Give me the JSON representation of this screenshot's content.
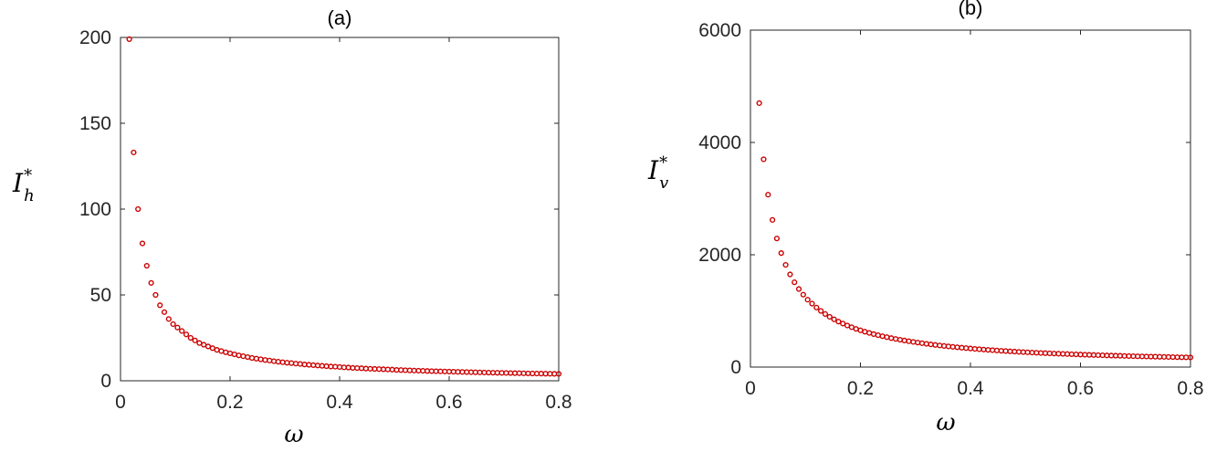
{
  "chart_data": [
    {
      "type": "scatter",
      "title": "(a)",
      "xlabel": "ω",
      "ylabel": {
        "base": "I",
        "sub": "h",
        "sup": "*"
      },
      "xlim": [
        0,
        0.8
      ],
      "ylim": [
        0,
        200
      ],
      "xticks": [
        0,
        0.2,
        0.4,
        0.6,
        0.8
      ],
      "yticks": [
        0,
        50,
        100,
        150,
        200
      ],
      "xtick_labels": [
        "0",
        "0.2",
        "0.4",
        "0.6",
        "0.8"
      ],
      "ytick_labels": [
        "0",
        "50",
        "100",
        "150",
        "200"
      ],
      "marker_color": "#cc0000",
      "grid": false,
      "series": [
        {
          "x": [
            0.016,
            0.024,
            0.032,
            0.04,
            0.048,
            0.056,
            0.064,
            0.072,
            0.08,
            0.088,
            0.096,
            0.104,
            0.112,
            0.12,
            0.128,
            0.136,
            0.144,
            0.152,
            0.16,
            0.168,
            0.176,
            0.184,
            0.192,
            0.2,
            0.208,
            0.216,
            0.224,
            0.232,
            0.24,
            0.248,
            0.256,
            0.264,
            0.272,
            0.28,
            0.288,
            0.296,
            0.304,
            0.312,
            0.32,
            0.328,
            0.336,
            0.344,
            0.352,
            0.36,
            0.368,
            0.376,
            0.384,
            0.392,
            0.4,
            0.408,
            0.416,
            0.424,
            0.432,
            0.44,
            0.448,
            0.456,
            0.464,
            0.472,
            0.48,
            0.488,
            0.496,
            0.504,
            0.512,
            0.52,
            0.528,
            0.536,
            0.544,
            0.552,
            0.56,
            0.568,
            0.576,
            0.584,
            0.592,
            0.6,
            0.608,
            0.616,
            0.624,
            0.632,
            0.64,
            0.648,
            0.656,
            0.664,
            0.672,
            0.68,
            0.688,
            0.696,
            0.704,
            0.712,
            0.72,
            0.728,
            0.736,
            0.744,
            0.752,
            0.76,
            0.768,
            0.776,
            0.784,
            0.792,
            0.8
          ],
          "y": [
            199,
            133,
            100,
            80,
            67,
            57,
            50,
            44,
            40,
            36,
            33,
            31,
            29,
            27,
            25,
            23.5,
            22,
            21,
            20,
            19,
            18,
            17.3,
            16.6,
            16,
            15.4,
            14.8,
            14.3,
            13.8,
            13.3,
            12.9,
            12.5,
            12.1,
            11.8,
            11.4,
            11.1,
            10.8,
            10.5,
            10.3,
            10,
            9.8,
            9.5,
            9.3,
            9.1,
            8.9,
            8.7,
            8.5,
            8.3,
            8.2,
            8,
            7.8,
            7.7,
            7.5,
            7.4,
            7.3,
            7.1,
            7,
            6.9,
            6.8,
            6.7,
            6.6,
            6.5,
            6.3,
            6.25,
            6.15,
            6.05,
            5.95,
            5.88,
            5.8,
            5.7,
            5.63,
            5.55,
            5.48,
            5.4,
            5.33,
            5.26,
            5.19,
            5.13,
            5.06,
            5,
            4.94,
            4.88,
            4.82,
            4.76,
            4.7,
            4.65,
            4.6,
            4.55,
            4.49,
            4.44,
            4.4,
            4.35,
            4.3,
            4.25,
            4.21,
            4.17,
            4.12,
            4.08,
            4.04,
            4
          ]
        }
      ]
    },
    {
      "type": "scatter",
      "title": "(b)",
      "xlabel": "ω",
      "ylabel": {
        "base": "I",
        "sub": "v",
        "sup": "*"
      },
      "xlim": [
        0,
        0.8
      ],
      "ylim": [
        0,
        6000
      ],
      "xticks": [
        0,
        0.2,
        0.4,
        0.6,
        0.8
      ],
      "yticks": [
        0,
        2000,
        4000,
        6000
      ],
      "xtick_labels": [
        "0",
        "0.2",
        "0.4",
        "0.6",
        "0.8"
      ],
      "ytick_labels": [
        "0",
        "2000",
        "4000",
        "6000"
      ],
      "marker_color": "#cc0000",
      "grid": false,
      "series": [
        {
          "x": [
            0.016,
            0.024,
            0.032,
            0.04,
            0.048,
            0.056,
            0.064,
            0.072,
            0.08,
            0.088,
            0.096,
            0.104,
            0.112,
            0.12,
            0.128,
            0.136,
            0.144,
            0.152,
            0.16,
            0.168,
            0.176,
            0.184,
            0.192,
            0.2,
            0.208,
            0.216,
            0.224,
            0.232,
            0.24,
            0.248,
            0.256,
            0.264,
            0.272,
            0.28,
            0.288,
            0.296,
            0.304,
            0.312,
            0.32,
            0.328,
            0.336,
            0.344,
            0.352,
            0.36,
            0.368,
            0.376,
            0.384,
            0.392,
            0.4,
            0.408,
            0.416,
            0.424,
            0.432,
            0.44,
            0.448,
            0.456,
            0.464,
            0.472,
            0.48,
            0.488,
            0.496,
            0.504,
            0.512,
            0.52,
            0.528,
            0.536,
            0.544,
            0.552,
            0.56,
            0.568,
            0.576,
            0.584,
            0.592,
            0.6,
            0.608,
            0.616,
            0.624,
            0.632,
            0.64,
            0.648,
            0.656,
            0.664,
            0.672,
            0.68,
            0.688,
            0.696,
            0.704,
            0.712,
            0.72,
            0.728,
            0.736,
            0.744,
            0.752,
            0.76,
            0.768,
            0.776,
            0.784,
            0.792,
            0.8
          ],
          "y": [
            4700,
            3700,
            3070,
            2620,
            2290,
            2030,
            1820,
            1650,
            1510,
            1390,
            1290,
            1200,
            1130,
            1060,
            1000,
            945,
            895,
            850,
            810,
            775,
            740,
            710,
            680,
            655,
            630,
            608,
            587,
            568,
            550,
            533,
            516,
            501,
            487,
            473,
            460,
            448,
            436,
            425,
            414,
            404,
            394,
            385,
            376,
            368,
            360,
            352,
            345,
            338,
            331,
            324,
            318,
            312,
            306,
            301,
            295,
            290,
            285,
            280,
            276,
            271,
            267,
            263,
            259,
            255,
            251,
            248,
            244,
            241,
            238,
            235,
            232,
            229,
            226,
            223,
            220,
            217,
            215,
            212,
            210,
            207,
            205,
            203,
            201,
            198,
            196,
            194,
            192,
            190,
            188,
            186,
            185,
            183,
            181,
            179,
            178,
            176,
            174,
            173,
            171
          ]
        }
      ]
    }
  ]
}
